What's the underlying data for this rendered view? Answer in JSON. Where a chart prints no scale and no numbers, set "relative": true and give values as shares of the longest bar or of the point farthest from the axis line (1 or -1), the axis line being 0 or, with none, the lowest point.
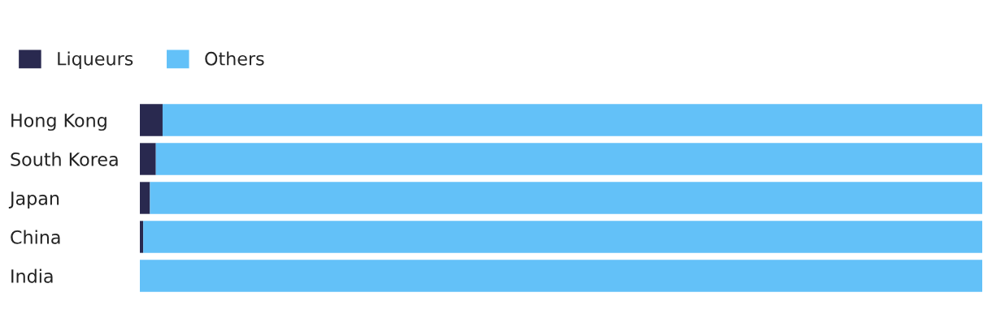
{
  "chart_data": {
    "type": "bar",
    "orientation": "horizontal",
    "stacked": true,
    "relative": true,
    "legend": "top left",
    "categories": [
      "Hong Kong",
      "South Korea",
      "Japan",
      "China",
      "India"
    ],
    "series": [
      {
        "name": "Liqueurs",
        "color": "#29294f",
        "values": [
          0.027,
          0.019,
          0.012,
          0.004,
          0
        ]
      },
      {
        "name": "Others",
        "color": "#63c1f8",
        "values": [
          0.973,
          0.981,
          0.988,
          0.996,
          1
        ]
      }
    ]
  }
}
